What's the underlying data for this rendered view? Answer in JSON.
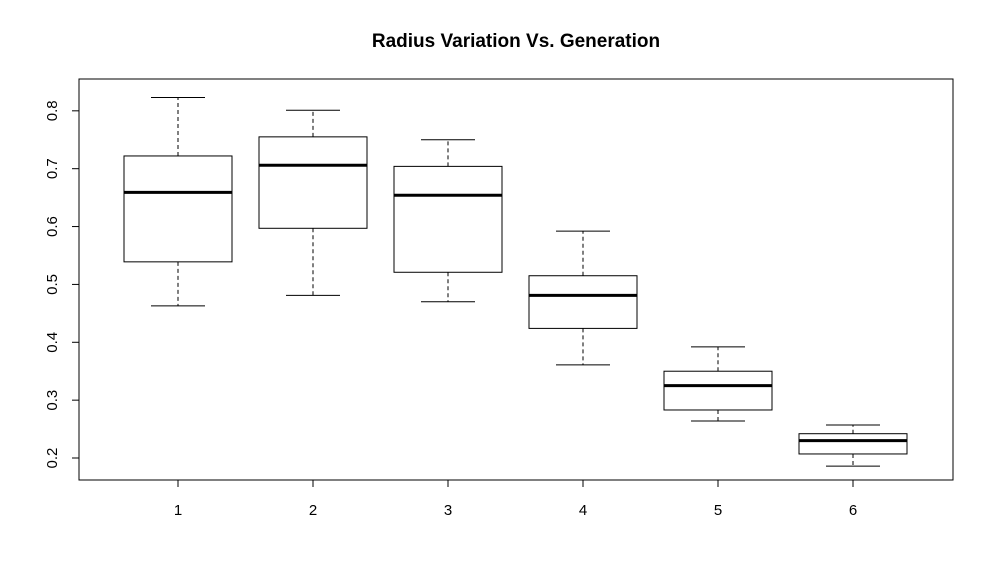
{
  "chart_data": {
    "type": "box",
    "title": "Radius Variation Vs. Generation",
    "xlabel": "",
    "ylabel": "",
    "categories": [
      "1",
      "2",
      "3",
      "4",
      "5",
      "6"
    ],
    "boxes": [
      {
        "whisker_low": 0.463,
        "q1": 0.539,
        "median": 0.659,
        "q3": 0.722,
        "whisker_high": 0.823
      },
      {
        "whisker_low": 0.481,
        "q1": 0.597,
        "median": 0.706,
        "q3": 0.755,
        "whisker_high": 0.801
      },
      {
        "whisker_low": 0.47,
        "q1": 0.521,
        "median": 0.654,
        "q3": 0.704,
        "whisker_high": 0.75
      },
      {
        "whisker_low": 0.361,
        "q1": 0.424,
        "median": 0.481,
        "q3": 0.515,
        "whisker_high": 0.592
      },
      {
        "whisker_low": 0.264,
        "q1": 0.283,
        "median": 0.325,
        "q3": 0.35,
        "whisker_high": 0.392
      },
      {
        "whisker_low": 0.186,
        "q1": 0.207,
        "median": 0.23,
        "q3": 0.242,
        "whisker_high": 0.257
      }
    ],
    "y_ticks": [
      "0.2",
      "0.3",
      "0.4",
      "0.5",
      "0.6",
      "0.7",
      "0.8"
    ],
    "ylim": [
      0.162,
      0.855
    ],
    "grid": false,
    "legend": "none"
  }
}
